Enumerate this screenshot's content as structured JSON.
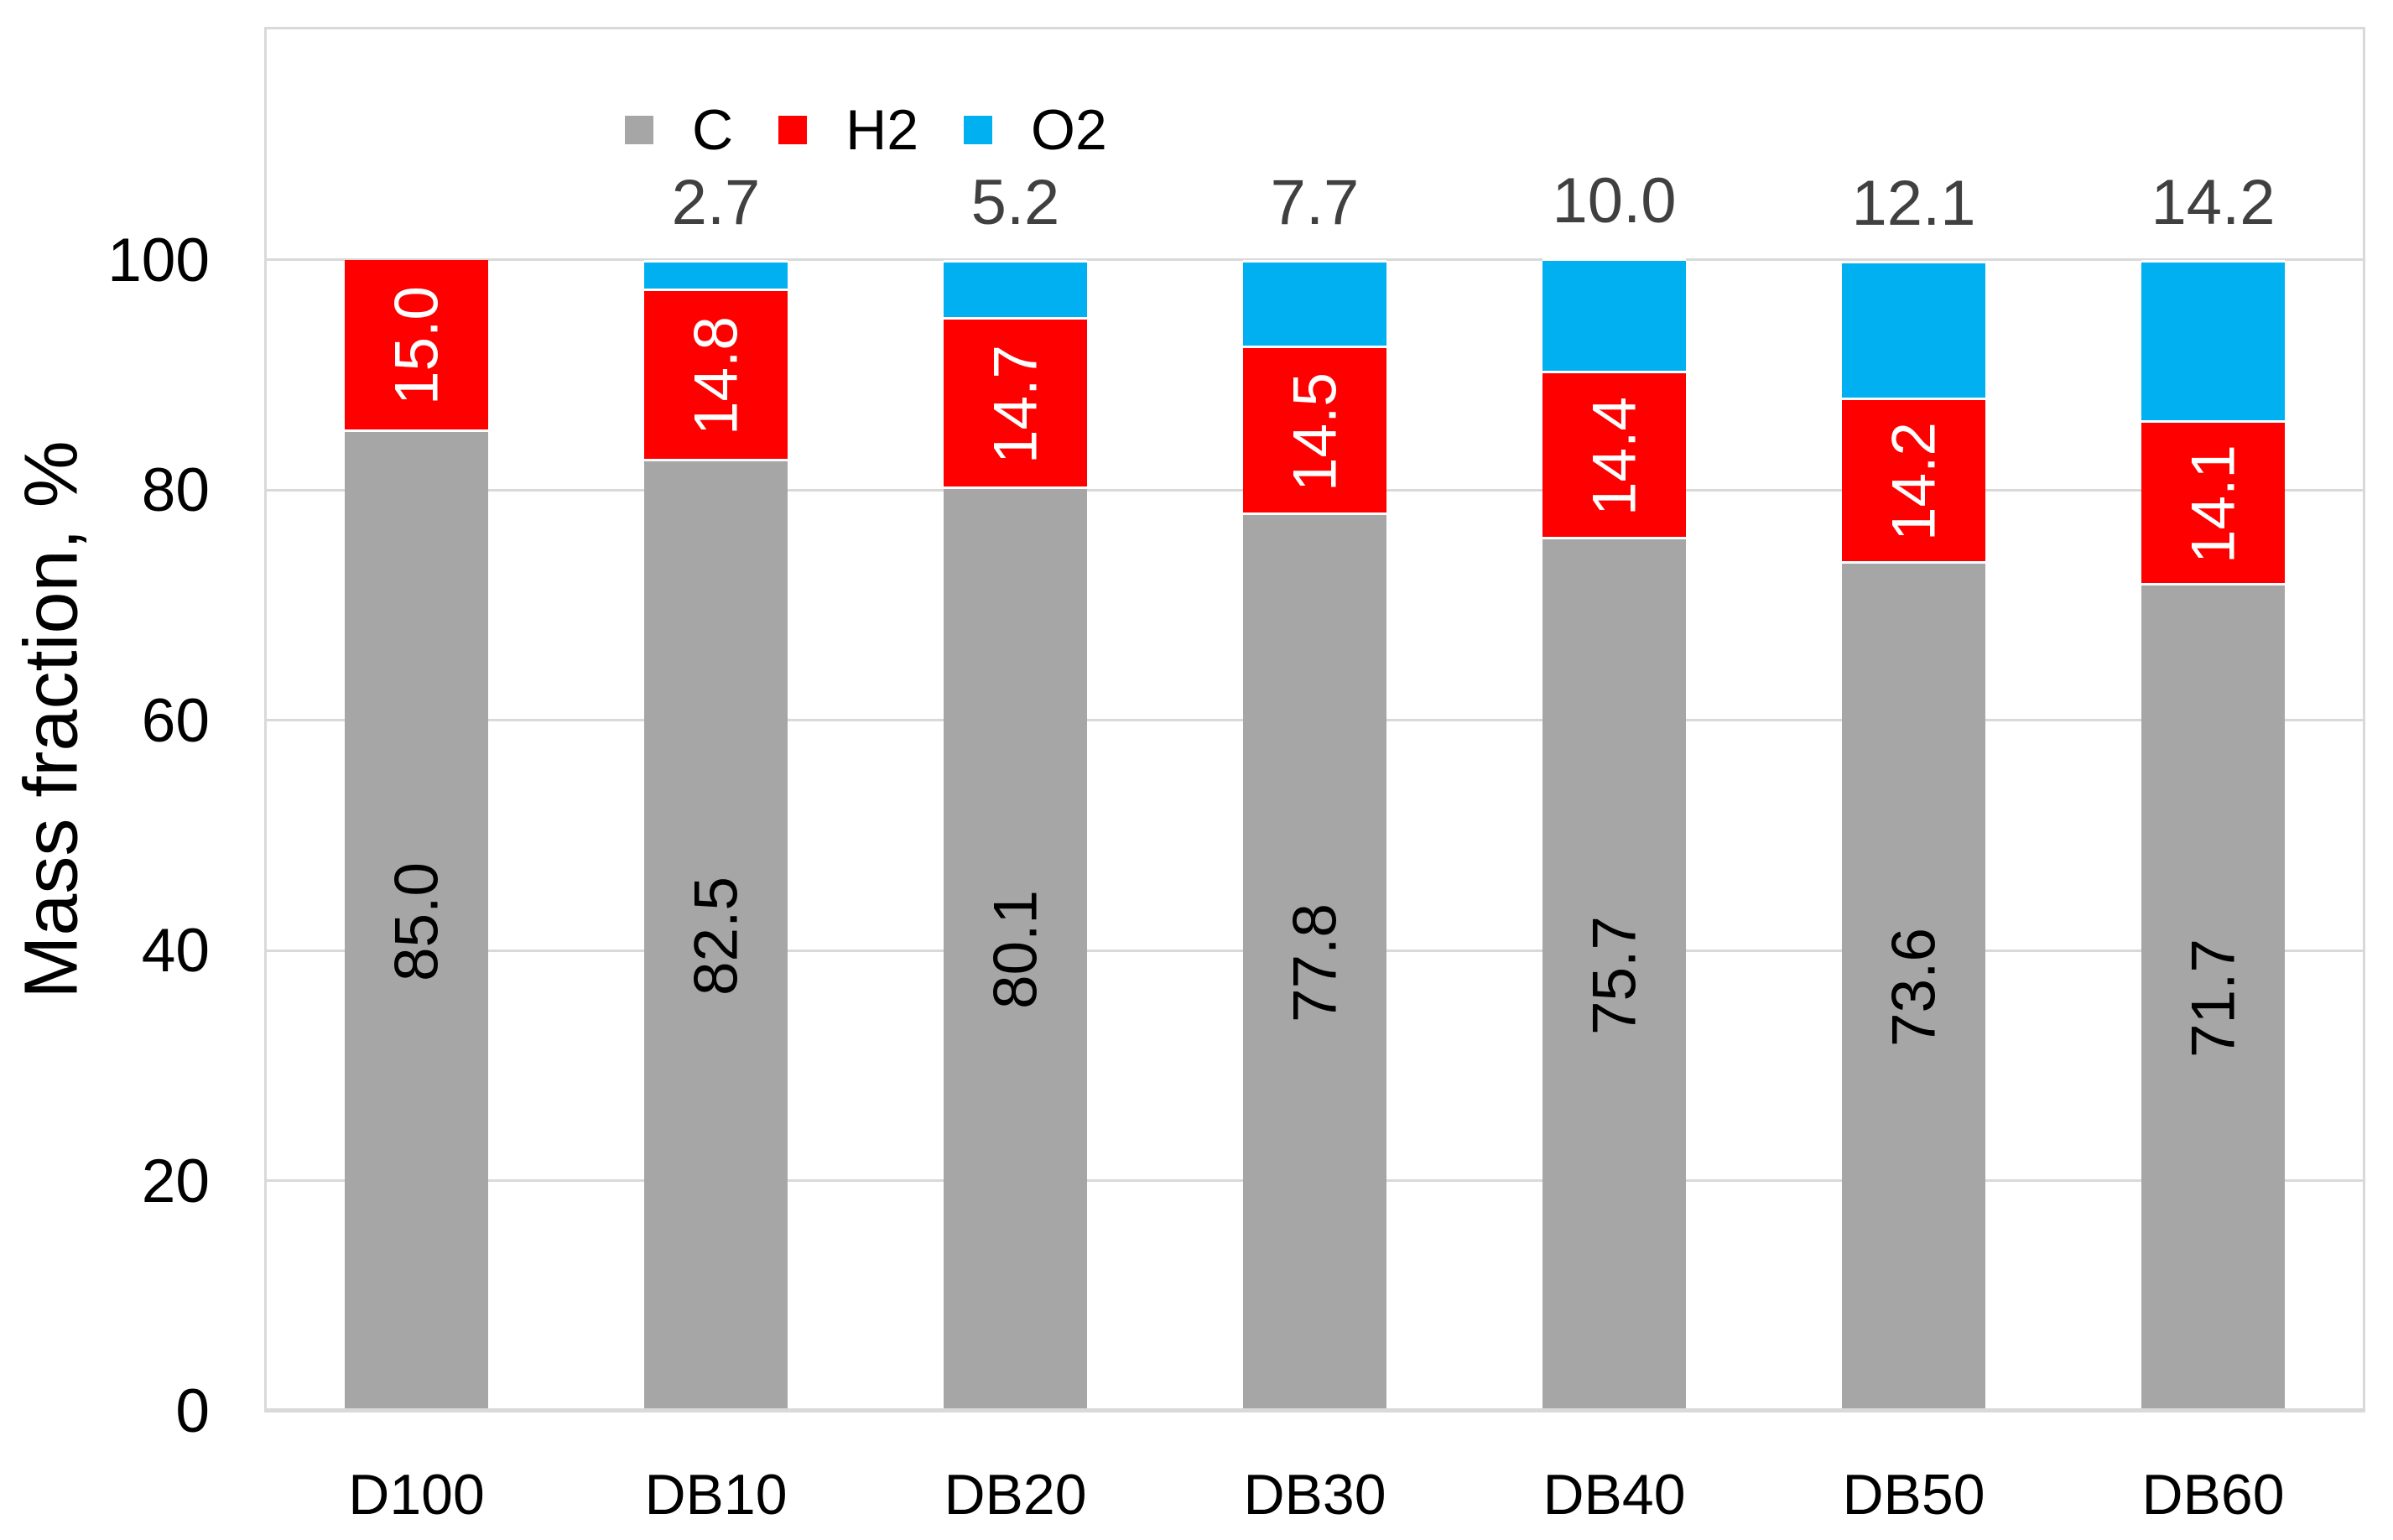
{
  "page": {
    "background": "#FFFFFF"
  },
  "chart_data": {
    "type": "bar",
    "variant": "stacked-column",
    "title": "",
    "xlabel": "",
    "ylabel": "Mass fraction, %",
    "ylim": [
      0,
      120
    ],
    "yticks": [
      0,
      20,
      40,
      60,
      80,
      100
    ],
    "grid": "horizontal",
    "legend_position": "top-left-inside",
    "categories": [
      "D100",
      "DB10",
      "DB20",
      "DB30",
      "DB40",
      "DB50",
      "DB60"
    ],
    "series": [
      {
        "name": "C",
        "color": "#A6A6A6",
        "values": [
          85.0,
          82.5,
          80.1,
          77.8,
          75.7,
          73.6,
          71.7
        ],
        "labels": [
          "85.0",
          "82.5",
          "80.1",
          "77.8",
          "75.7",
          "73.6",
          "71.7"
        ],
        "label_style": "inside-rotated",
        "label_color": "#000000"
      },
      {
        "name": "H2",
        "color": "#FF0000",
        "values": [
          15.0,
          14.8,
          14.7,
          14.5,
          14.4,
          14.2,
          14.1
        ],
        "labels": [
          "15.0",
          "14.8",
          "14.7",
          "14.5",
          "14.4",
          "14.2",
          "14.1"
        ],
        "label_style": "inside-rotated",
        "label_color": "#FFFFFF"
      },
      {
        "name": "O2",
        "color": "#00B0F0",
        "values": [
          0,
          2.7,
          5.2,
          7.7,
          10.0,
          12.1,
          14.2
        ],
        "labels": [
          "",
          "2.7",
          "5.2",
          "7.7",
          "10.0",
          "12.1",
          "14.2"
        ],
        "label_style": "above-bar",
        "label_color": "#404040"
      }
    ],
    "colors": {
      "gridline": "#D9D9D9",
      "axis_line": "#D9D9D9",
      "plot_border": "#D9D9D9",
      "tick_text": "#000000",
      "above_label_text": "#404040",
      "segment_gap": "#FFFFFF"
    }
  }
}
